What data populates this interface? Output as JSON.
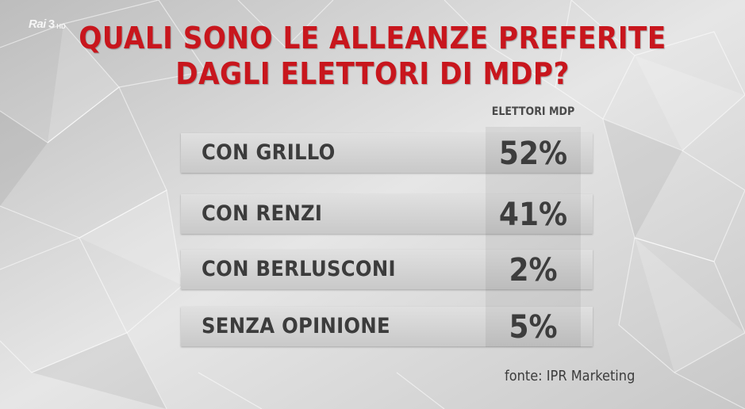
{
  "broadcaster": {
    "logo": "Rai",
    "channel": "3",
    "quality": "HD"
  },
  "title_lines": [
    "QUALI SONO LE ALLEANZE PREFERITE",
    "DAGLI ELETTORI DI MDP?"
  ],
  "chart_data": {
    "type": "table",
    "title": "QUALI SONO LE ALLEANZE PREFERITE DAGLI ELETTORI DI MDP?",
    "column_header": "ELETTORI MDP",
    "rows": [
      {
        "label": "CON GRILLO",
        "value_text": "52%",
        "value": 52
      },
      {
        "label": "CON RENZI",
        "value_text": "41%",
        "value": 41
      },
      {
        "label": "CON BERLUSCONI",
        "value_text": "2%",
        "value": 2
      },
      {
        "label": "SENZA OPINIONE",
        "value_text": "5%",
        "value": 5
      }
    ]
  },
  "source": "fonte: IPR Marketing",
  "colors": {
    "title": "#c8161d",
    "text": "#3c3c3c"
  }
}
